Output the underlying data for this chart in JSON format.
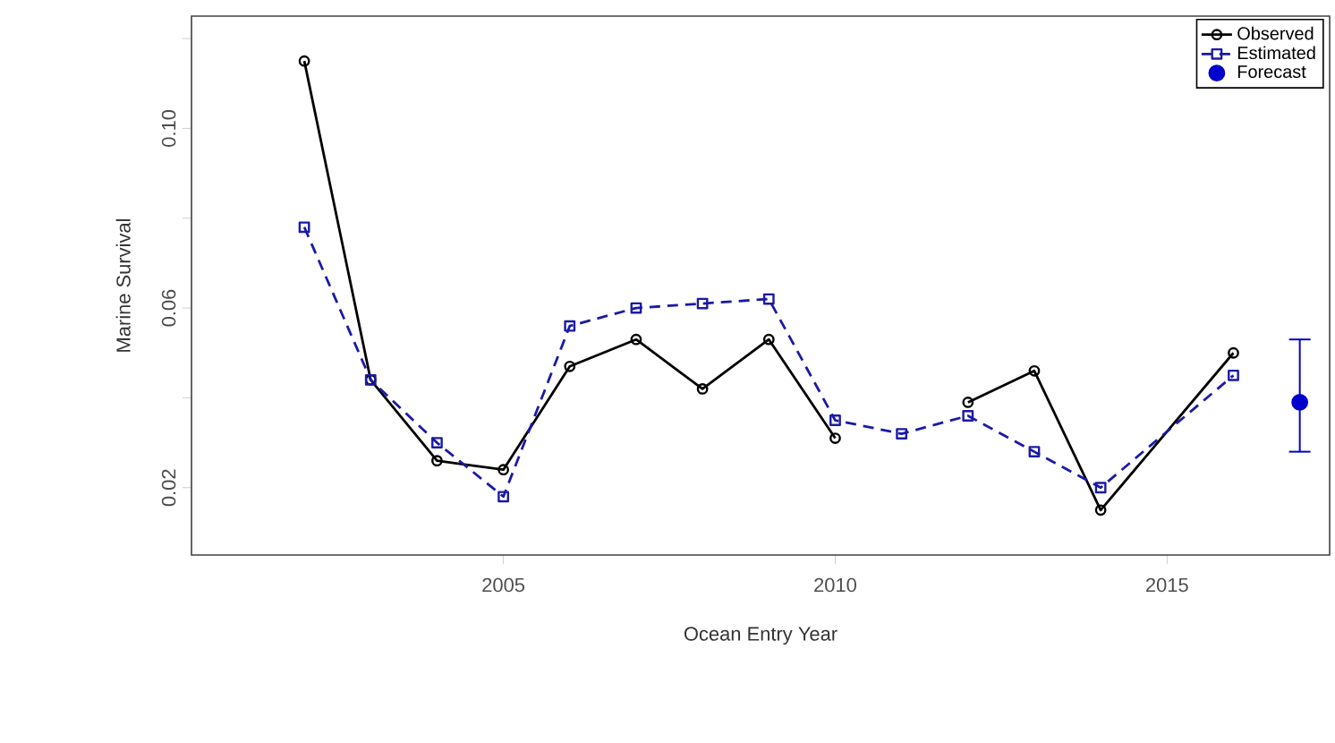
{
  "chart_data": {
    "type": "line",
    "xlabel": "Ocean Entry Year",
    "ylabel": "Marine Survival",
    "xlim": [
      2000.3,
      2017.45
    ],
    "ylim": [
      0.005,
      0.125
    ],
    "xticks": [
      2005,
      2010,
      2015
    ],
    "yticks": [
      0.02,
      {
        "value": 0.04,
        "label": null
      },
      0.06,
      {
        "value": 0.08,
        "label": null
      },
      {
        "value": 0.1,
        "label": "0.10"
      },
      {
        "value": 0.12,
        "label": null
      }
    ],
    "legend": "top right",
    "grid": false,
    "series": [
      {
        "name": "Observed",
        "color": "#000000",
        "marker": "circle",
        "line_style": "solid",
        "x": [
          2002,
          2003,
          2004,
          2005,
          2006,
          2007,
          2008,
          2009,
          2010,
          2011,
          2012,
          2013,
          2014,
          2016
        ],
        "values": [
          0.115,
          0.044,
          0.026,
          0.024,
          0.047,
          0.053,
          0.042,
          0.053,
          0.031,
          null,
          0.039,
          0.046,
          0.015,
          0.05
        ]
      },
      {
        "name": "Estimated",
        "color": "#1a1aa6",
        "marker": "square",
        "line_style": "dashed",
        "x": [
          2002,
          2003,
          2004,
          2005,
          2006,
          2007,
          2008,
          2009,
          2010,
          2011,
          2012,
          2013,
          2014,
          2016
        ],
        "values": [
          0.078,
          0.044,
          0.03,
          0.018,
          0.056,
          0.06,
          0.061,
          0.062,
          0.035,
          0.032,
          0.036,
          0.028,
          0.02,
          0.045
        ]
      },
      {
        "name": "Forecast",
        "type": "scatter",
        "color": "#0000cc",
        "marker": "circle",
        "x": [
          2017
        ],
        "values": [
          0.039
        ],
        "errors": [
          [
            0.028,
            0.053
          ]
        ]
      }
    ]
  }
}
